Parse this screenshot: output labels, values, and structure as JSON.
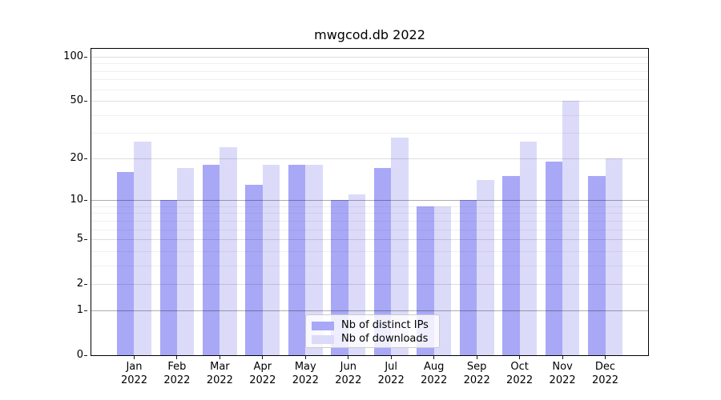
{
  "title": "mwgcod.db 2022",
  "chart_data": {
    "type": "bar",
    "title": "mwgcod.db 2022",
    "categories": [
      "Jan",
      "Feb",
      "Mar",
      "Apr",
      "May",
      "Jun",
      "Jul",
      "Aug",
      "Sep",
      "Oct",
      "Nov",
      "Dec"
    ],
    "x_year": "2022",
    "series": [
      {
        "name": "Nb of distinct IPs",
        "color": "#a8a8f7",
        "values": [
          16,
          10,
          18,
          13,
          18,
          10,
          17,
          9,
          10,
          15,
          19,
          15
        ]
      },
      {
        "name": "Nb of downloads",
        "color": "#dbdbf9",
        "values": [
          26,
          17,
          24,
          18,
          18,
          11,
          28,
          9,
          14,
          26,
          50,
          20
        ]
      }
    ],
    "xlabel": "",
    "ylabel": "",
    "y_axis": {
      "scale": "log1p",
      "ticks": [
        0,
        1,
        2,
        5,
        10,
        20,
        50,
        100
      ],
      "emphasized_ticks": [
        1,
        10
      ],
      "minor_ticks": [
        3,
        4,
        6,
        7,
        8,
        9,
        30,
        40,
        60,
        70,
        80,
        90
      ],
      "ylim": [
        0,
        113
      ]
    },
    "grid": true,
    "legend_position": "lower center"
  }
}
